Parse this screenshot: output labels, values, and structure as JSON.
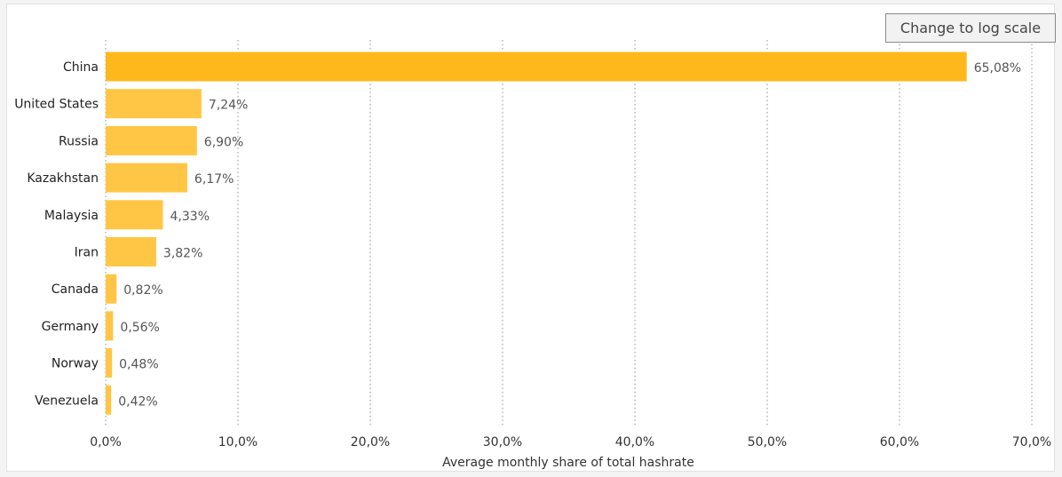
{
  "controls": {
    "log_scale_button": "Change to log scale"
  },
  "chart_data": {
    "type": "bar",
    "orientation": "horizontal",
    "categories": [
      "China",
      "United States",
      "Russia",
      "Kazakhstan",
      "Malaysia",
      "Iran",
      "Canada",
      "Germany",
      "Norway",
      "Venezuela"
    ],
    "values": [
      65.08,
      7.24,
      6.9,
      6.17,
      4.33,
      3.82,
      0.82,
      0.56,
      0.48,
      0.42
    ],
    "data_labels": [
      "65,08%",
      "7,24%",
      "6,90%",
      "6,17%",
      "4,33%",
      "3,82%",
      "0,82%",
      "0,56%",
      "0,48%",
      "0,42%"
    ],
    "title": "",
    "xlabel": "Average monthly share of total hashrate",
    "ylabel": "",
    "xlim": [
      0,
      70
    ],
    "x_ticks": [
      0,
      10,
      20,
      30,
      40,
      50,
      60,
      70
    ],
    "x_tick_labels": [
      "0,0%",
      "10,0%",
      "20,0%",
      "30,0%",
      "40,0%",
      "50,0%",
      "60,0%",
      "70,0%"
    ],
    "grid": true,
    "colors": {
      "highlight": "#ffb81c",
      "bar": "#ffc645",
      "grid": "#c8c8c8",
      "label_text": "#222222",
      "value_text": "#555555"
    }
  }
}
